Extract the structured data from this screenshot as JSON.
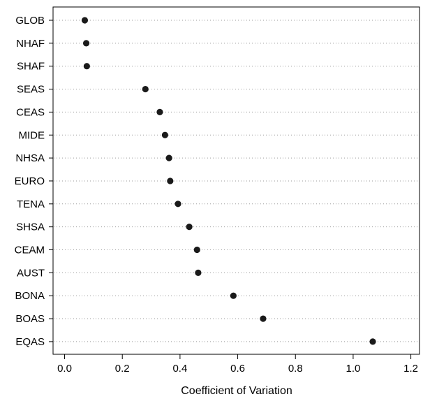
{
  "chart_data": {
    "type": "scatter",
    "subtype": "dot-plot",
    "categories": [
      "GLOB",
      "NHAF",
      "SHAF",
      "SEAS",
      "CEAS",
      "MIDE",
      "NHSA",
      "EURO",
      "TENA",
      "SHSA",
      "CEAM",
      "AUST",
      "BONA",
      "BOAS",
      "EQAS"
    ],
    "values": [
      0.07,
      0.075,
      0.077,
      0.28,
      0.33,
      0.348,
      0.362,
      0.366,
      0.393,
      0.432,
      0.459,
      0.463,
      0.585,
      0.688,
      1.068
    ],
    "xlabel": "Coefficient of Variation",
    "ylabel": "",
    "xlim": [
      -0.04,
      1.23
    ],
    "xticks": [
      "0.0",
      "0.2",
      "0.4",
      "0.6",
      "0.8",
      "1.0",
      "1.2"
    ],
    "grid": "dotted horizontal lines per category",
    "point_color": "#1a1a1a",
    "grid_color": "#9a9a9a"
  }
}
